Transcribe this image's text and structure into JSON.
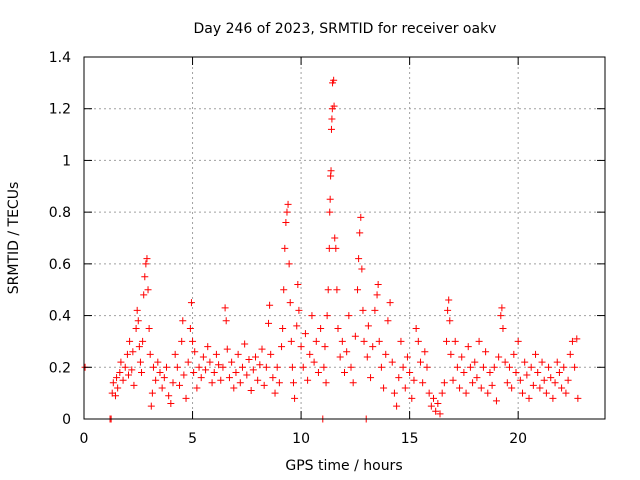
{
  "chart_data": {
    "type": "scatter",
    "title": "Day 246 of 2023, SRMTID for receiver oakv",
    "xlabel": "GPS time / hours",
    "ylabel": "SRMTID / TECUs",
    "xlim": [
      0,
      24
    ],
    "ylim": [
      0,
      1.4
    ],
    "xticks": [
      0,
      5,
      10,
      15,
      20
    ],
    "yticks": [
      0,
      0.2,
      0.4,
      0.6,
      0.8,
      1,
      1.2,
      1.4
    ],
    "ytick_labels": [
      "0",
      "0.2",
      "0.4",
      "0.6",
      "0.8",
      "1",
      "1.2",
      "1.4"
    ],
    "grid": true,
    "marker": "+",
    "color": "#ff0000",
    "series": [
      {
        "name": "SRMTID",
        "points": [
          [
            0.05,
            0.2
          ],
          [
            1.2,
            0.0
          ],
          [
            1.25,
            0.0
          ],
          [
            1.3,
            0.1
          ],
          [
            1.35,
            0.14
          ],
          [
            1.45,
            0.09
          ],
          [
            1.5,
            0.16
          ],
          [
            1.55,
            0.12
          ],
          [
            1.65,
            0.18
          ],
          [
            1.7,
            0.22
          ],
          [
            1.8,
            0.15
          ],
          [
            1.9,
            0.2
          ],
          [
            2.0,
            0.25
          ],
          [
            2.05,
            0.17
          ],
          [
            2.1,
            0.3
          ],
          [
            2.2,
            0.19
          ],
          [
            2.25,
            0.26
          ],
          [
            2.3,
            0.13
          ],
          [
            2.4,
            0.35
          ],
          [
            2.45,
            0.42
          ],
          [
            2.5,
            0.38
          ],
          [
            2.55,
            0.28
          ],
          [
            2.6,
            0.22
          ],
          [
            2.65,
            0.18
          ],
          [
            2.7,
            0.3
          ],
          [
            2.75,
            0.48
          ],
          [
            2.8,
            0.55
          ],
          [
            2.85,
            0.6
          ],
          [
            2.9,
            0.62
          ],
          [
            2.95,
            0.5
          ],
          [
            3.0,
            0.35
          ],
          [
            3.05,
            0.25
          ],
          [
            3.1,
            0.05
          ],
          [
            3.15,
            0.1
          ],
          [
            3.2,
            0.2
          ],
          [
            3.3,
            0.15
          ],
          [
            3.4,
            0.22
          ],
          [
            3.5,
            0.18
          ],
          [
            3.6,
            0.12
          ],
          [
            3.7,
            0.16
          ],
          [
            3.8,
            0.2
          ],
          [
            3.9,
            0.09
          ],
          [
            4.0,
            0.06
          ],
          [
            4.1,
            0.14
          ],
          [
            4.2,
            0.25
          ],
          [
            4.3,
            0.2
          ],
          [
            4.4,
            0.13
          ],
          [
            4.5,
            0.3
          ],
          [
            4.55,
            0.38
          ],
          [
            4.6,
            0.17
          ],
          [
            4.7,
            0.08
          ],
          [
            4.8,
            0.22
          ],
          [
            4.9,
            0.35
          ],
          [
            4.95,
            0.45
          ],
          [
            5.0,
            0.3
          ],
          [
            5.05,
            0.18
          ],
          [
            5.1,
            0.26
          ],
          [
            5.2,
            0.12
          ],
          [
            5.3,
            0.2
          ],
          [
            5.4,
            0.16
          ],
          [
            5.5,
            0.24
          ],
          [
            5.6,
            0.19
          ],
          [
            5.7,
            0.28
          ],
          [
            5.8,
            0.22
          ],
          [
            5.9,
            0.14
          ],
          [
            6.0,
            0.18
          ],
          [
            6.1,
            0.25
          ],
          [
            6.2,
            0.21
          ],
          [
            6.3,
            0.15
          ],
          [
            6.4,
            0.2
          ],
          [
            6.5,
            0.43
          ],
          [
            6.55,
            0.38
          ],
          [
            6.6,
            0.27
          ],
          [
            6.7,
            0.16
          ],
          [
            6.8,
            0.22
          ],
          [
            6.9,
            0.12
          ],
          [
            7.0,
            0.18
          ],
          [
            7.1,
            0.25
          ],
          [
            7.2,
            0.14
          ],
          [
            7.3,
            0.2
          ],
          [
            7.4,
            0.29
          ],
          [
            7.5,
            0.17
          ],
          [
            7.6,
            0.23
          ],
          [
            7.7,
            0.11
          ],
          [
            7.8,
            0.19
          ],
          [
            7.9,
            0.24
          ],
          [
            8.0,
            0.15
          ],
          [
            8.1,
            0.21
          ],
          [
            8.2,
            0.27
          ],
          [
            8.3,
            0.13
          ],
          [
            8.4,
            0.2
          ],
          [
            8.5,
            0.37
          ],
          [
            8.55,
            0.44
          ],
          [
            8.6,
            0.25
          ],
          [
            8.7,
            0.16
          ],
          [
            8.8,
            0.1
          ],
          [
            8.9,
            0.2
          ],
          [
            9.0,
            0.14
          ],
          [
            9.1,
            0.28
          ],
          [
            9.15,
            0.35
          ],
          [
            9.2,
            0.5
          ],
          [
            9.25,
            0.66
          ],
          [
            9.3,
            0.76
          ],
          [
            9.35,
            0.8
          ],
          [
            9.4,
            0.83
          ],
          [
            9.45,
            0.6
          ],
          [
            9.5,
            0.45
          ],
          [
            9.55,
            0.3
          ],
          [
            9.6,
            0.2
          ],
          [
            9.65,
            0.14
          ],
          [
            9.7,
            0.08
          ],
          [
            9.8,
            0.36
          ],
          [
            9.85,
            0.52
          ],
          [
            9.9,
            0.42
          ],
          [
            10.0,
            0.28
          ],
          [
            10.1,
            0.2
          ],
          [
            10.2,
            0.33
          ],
          [
            10.3,
            0.15
          ],
          [
            10.4,
            0.25
          ],
          [
            10.5,
            0.4
          ],
          [
            10.6,
            0.22
          ],
          [
            10.7,
            0.3
          ],
          [
            10.8,
            0.18
          ],
          [
            10.9,
            0.35
          ],
          [
            11.0,
            0.0
          ],
          [
            11.05,
            0.2
          ],
          [
            11.1,
            0.28
          ],
          [
            11.15,
            0.14
          ],
          [
            11.2,
            0.4
          ],
          [
            11.25,
            0.5
          ],
          [
            11.3,
            0.66
          ],
          [
            11.32,
            0.8
          ],
          [
            11.34,
            0.85
          ],
          [
            11.36,
            0.94
          ],
          [
            11.38,
            0.96
          ],
          [
            11.4,
            1.12
          ],
          [
            11.42,
            1.16
          ],
          [
            11.44,
            1.2
          ],
          [
            11.45,
            1.3
          ],
          [
            11.5,
            1.31
          ],
          [
            11.52,
            1.21
          ],
          [
            11.55,
            0.7
          ],
          [
            11.6,
            0.66
          ],
          [
            11.65,
            0.5
          ],
          [
            11.7,
            0.35
          ],
          [
            11.8,
            0.24
          ],
          [
            11.9,
            0.3
          ],
          [
            12.0,
            0.18
          ],
          [
            12.1,
            0.26
          ],
          [
            12.2,
            0.4
          ],
          [
            12.3,
            0.2
          ],
          [
            12.4,
            0.14
          ],
          [
            12.5,
            0.32
          ],
          [
            12.6,
            0.5
          ],
          [
            12.65,
            0.62
          ],
          [
            12.7,
            0.72
          ],
          [
            12.75,
            0.78
          ],
          [
            12.8,
            0.58
          ],
          [
            12.85,
            0.42
          ],
          [
            12.9,
            0.3
          ],
          [
            13.0,
            0.0
          ],
          [
            13.05,
            0.24
          ],
          [
            13.1,
            0.36
          ],
          [
            13.2,
            0.16
          ],
          [
            13.3,
            0.28
          ],
          [
            13.4,
            0.42
          ],
          [
            13.5,
            0.48
          ],
          [
            13.55,
            0.52
          ],
          [
            13.6,
            0.3
          ],
          [
            13.7,
            0.2
          ],
          [
            13.8,
            0.12
          ],
          [
            13.9,
            0.25
          ],
          [
            14.0,
            0.38
          ],
          [
            14.1,
            0.45
          ],
          [
            14.2,
            0.22
          ],
          [
            14.3,
            0.1
          ],
          [
            14.4,
            0.05
          ],
          [
            14.5,
            0.16
          ],
          [
            14.6,
            0.3
          ],
          [
            14.7,
            0.2
          ],
          [
            14.8,
            0.12
          ],
          [
            14.9,
            0.24
          ],
          [
            15.0,
            0.18
          ],
          [
            15.1,
            0.08
          ],
          [
            15.2,
            0.15
          ],
          [
            15.3,
            0.35
          ],
          [
            15.4,
            0.3
          ],
          [
            15.5,
            0.22
          ],
          [
            15.6,
            0.14
          ],
          [
            15.7,
            0.26
          ],
          [
            15.8,
            0.2
          ],
          [
            15.9,
            0.1
          ],
          [
            16.0,
            0.05
          ],
          [
            16.1,
            0.08
          ],
          [
            16.2,
            0.03
          ],
          [
            16.3,
            0.06
          ],
          [
            16.4,
            0.02
          ],
          [
            16.5,
            0.1
          ],
          [
            16.6,
            0.14
          ],
          [
            16.7,
            0.3
          ],
          [
            16.75,
            0.42
          ],
          [
            16.8,
            0.46
          ],
          [
            16.85,
            0.38
          ],
          [
            16.9,
            0.25
          ],
          [
            17.0,
            0.15
          ],
          [
            17.1,
            0.3
          ],
          [
            17.2,
            0.2
          ],
          [
            17.3,
            0.12
          ],
          [
            17.4,
            0.24
          ],
          [
            17.5,
            0.18
          ],
          [
            17.6,
            0.1
          ],
          [
            17.7,
            0.28
          ],
          [
            17.8,
            0.2
          ],
          [
            17.9,
            0.14
          ],
          [
            18.0,
            0.22
          ],
          [
            18.1,
            0.16
          ],
          [
            18.2,
            0.3
          ],
          [
            18.3,
            0.12
          ],
          [
            18.4,
            0.2
          ],
          [
            18.5,
            0.26
          ],
          [
            18.6,
            0.1
          ],
          [
            18.7,
            0.18
          ],
          [
            18.8,
            0.13
          ],
          [
            18.9,
            0.2
          ],
          [
            19.0,
            0.07
          ],
          [
            19.1,
            0.24
          ],
          [
            19.2,
            0.4
          ],
          [
            19.25,
            0.43
          ],
          [
            19.3,
            0.35
          ],
          [
            19.4,
            0.22
          ],
          [
            19.5,
            0.14
          ],
          [
            19.6,
            0.2
          ],
          [
            19.7,
            0.12
          ],
          [
            19.8,
            0.25
          ],
          [
            19.9,
            0.18
          ],
          [
            20.0,
            0.3
          ],
          [
            20.1,
            0.15
          ],
          [
            20.2,
            0.1
          ],
          [
            20.3,
            0.22
          ],
          [
            20.4,
            0.17
          ],
          [
            20.5,
            0.08
          ],
          [
            20.6,
            0.2
          ],
          [
            20.7,
            0.13
          ],
          [
            20.8,
            0.25
          ],
          [
            20.9,
            0.18
          ],
          [
            21.0,
            0.12
          ],
          [
            21.1,
            0.22
          ],
          [
            21.2,
            0.15
          ],
          [
            21.3,
            0.1
          ],
          [
            21.4,
            0.2
          ],
          [
            21.5,
            0.16
          ],
          [
            21.6,
            0.08
          ],
          [
            21.7,
            0.14
          ],
          [
            21.8,
            0.22
          ],
          [
            21.9,
            0.18
          ],
          [
            22.0,
            0.12
          ],
          [
            22.1,
            0.2
          ],
          [
            22.2,
            0.1
          ],
          [
            22.3,
            0.15
          ],
          [
            22.4,
            0.25
          ],
          [
            22.5,
            0.3
          ],
          [
            22.6,
            0.2
          ],
          [
            22.7,
            0.31
          ],
          [
            22.75,
            0.08
          ]
        ]
      }
    ]
  }
}
